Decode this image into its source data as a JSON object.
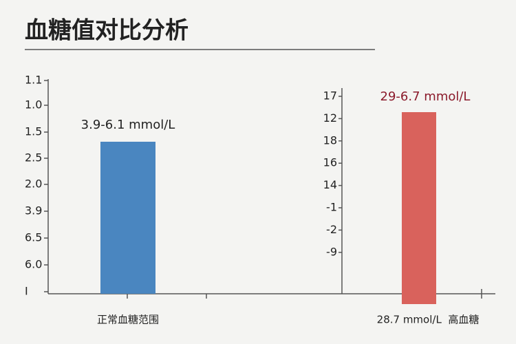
{
  "header": {
    "title": "血糖值对比分析"
  },
  "left_panel": {
    "tick_labels": [
      "1.1",
      "1.0",
      "1.5",
      "2.5",
      "2.0",
      "3.9",
      "6.5",
      "6.0",
      "I"
    ],
    "bar_label": "3.9-6.1 mmol/L",
    "category": "正常血糖范围"
  },
  "right_panel": {
    "tick_labels": [
      "17",
      "12",
      "18",
      "16",
      "14",
      "-1",
      "-2",
      "-9"
    ],
    "bar_label": "29-6.7 mmol/L",
    "category": "28.7 mmol/L  高血糖"
  }
}
